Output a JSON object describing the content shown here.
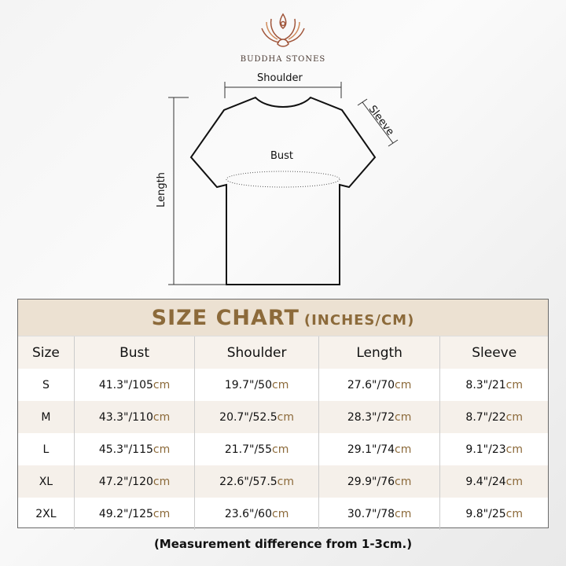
{
  "brand": {
    "name": "BUDDHA STONES",
    "logo_icon": "lotus-meditation-icon",
    "color": "#a0553a"
  },
  "diagram": {
    "shoulder": "Shoulder",
    "sleeve": "Sleeve",
    "bust": "Bust",
    "length": "Length"
  },
  "table": {
    "title": "SIZE CHART",
    "title_sub": "(INCHES/CM)",
    "accent": "#8c6a3a",
    "headers": [
      "Size",
      "Bust",
      "Shoulder",
      "Length",
      "Sleeve"
    ],
    "rows": [
      {
        "size": "S",
        "bust": "41.3\"/105",
        "shoulder": "19.7\"/50",
        "length": "27.6\"/70",
        "sleeve": "8.3\"/21"
      },
      {
        "size": "M",
        "bust": "43.3\"/110",
        "shoulder": "20.7\"/52.5",
        "length": "28.3\"/72",
        "sleeve": "8.7\"/22"
      },
      {
        "size": "L",
        "bust": "45.3\"/115",
        "shoulder": "21.7\"/55",
        "length": "29.1\"/74",
        "sleeve": "9.1\"/23"
      },
      {
        "size": "XL",
        "bust": "47.2\"/120",
        "shoulder": "22.6\"/57.5",
        "length": "29.9\"/76",
        "sleeve": "9.4\"/24"
      },
      {
        "size": "2XL",
        "bust": "49.2\"/125",
        "shoulder": "23.6\"/60",
        "length": "30.7\"/78",
        "sleeve": "9.8\"/25"
      }
    ],
    "unit": "cm"
  },
  "note": "(Measurement difference from 1-3cm.)"
}
